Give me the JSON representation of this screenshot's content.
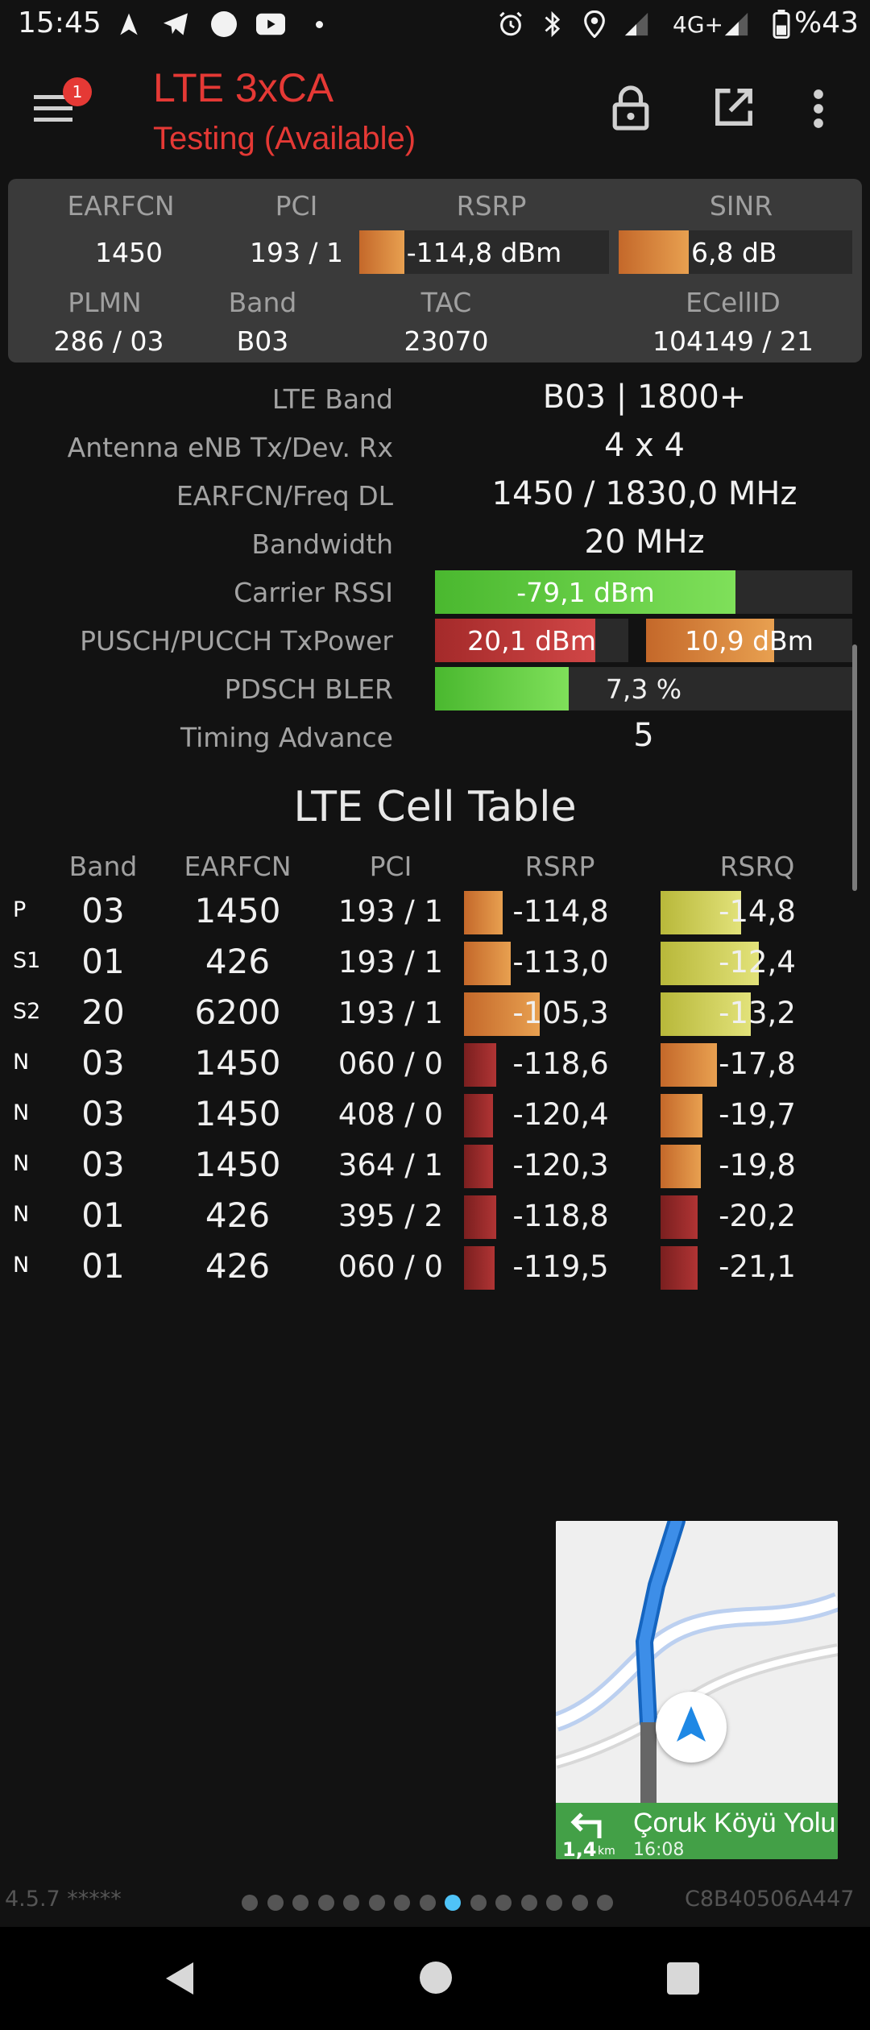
{
  "status_bar": {
    "time": "15:45",
    "battery": "%43",
    "network": "4G+",
    "icons": [
      "navigation-icon",
      "telegram-icon",
      "circle-icon",
      "youtube-icon",
      "dot-icon",
      "alarm-icon",
      "bluetooth-icon",
      "location-icon",
      "signal-icon",
      "battery-icon"
    ]
  },
  "app_bar": {
    "title": "LTE 3xCA",
    "subtitle": "Testing (Available)",
    "notification_count": "1",
    "icons": [
      "menu-icon",
      "lock-icon",
      "open-external-icon",
      "more-vert-icon"
    ]
  },
  "summary": {
    "headers1": [
      "EARFCN",
      "PCI",
      "RSRP",
      "SINR"
    ],
    "earfcn": "1450",
    "pci": "193 / 1",
    "rsrp": "-114,8 dBm",
    "rsrp_fill": 0.18,
    "sinr": "6,8 dB",
    "sinr_fill": 0.3,
    "headers2": [
      "PLMN",
      "Band",
      "TAC",
      "ECellID"
    ],
    "plmn": "286 / 03",
    "band": "B03",
    "tac": "23070",
    "ecellid": "104149 / 21"
  },
  "details": {
    "lte_band_label": "LTE Band",
    "lte_band": "B03 | 1800+",
    "antenna_label": "Antenna eNB Tx/Dev. Rx",
    "antenna": "4 x 4",
    "freq_label": "EARFCN/Freq DL",
    "freq": "1450 / 1830,0 MHz",
    "bw_label": "Bandwidth",
    "bw": "20 MHz",
    "rssi_label": "Carrier RSSI",
    "rssi": "-79,1 dBm",
    "rssi_fill": 0.72,
    "txpower_label": "PUSCH/PUCCH TxPower",
    "pusch": "20,1 dBm",
    "pusch_fill": 0.83,
    "pucch": "10,9 dBm",
    "pucch_fill": 0.62,
    "bler_label": "PDSCH BLER",
    "bler": "7,3 %",
    "bler_fill": 0.32,
    "ta_label": "Timing Advance",
    "ta": "5"
  },
  "cell_table": {
    "title": "LTE Cell Table",
    "headers": [
      "Band",
      "EARFCN",
      "PCI",
      "RSRP",
      "RSRQ"
    ],
    "rows": [
      {
        "tag": "P",
        "band": "03",
        "earfcn": "1450",
        "pci": "193 / 1",
        "rsrp": "-114,8",
        "rsrq": "-14,8"
      },
      {
        "tag": "S1",
        "band": "01",
        "earfcn": "426",
        "pci": "193 / 1",
        "rsrp": "-113,0",
        "rsrq": "-12,4"
      },
      {
        "tag": "S2",
        "band": "20",
        "earfcn": "6200",
        "pci": "193 / 1",
        "rsrp": "-105,3",
        "rsrq": "-13,2"
      },
      {
        "tag": "N",
        "band": "03",
        "earfcn": "1450",
        "pci": "060 / 0",
        "rsrp": "-118,6",
        "rsrq": "-17,8"
      },
      {
        "tag": "N",
        "band": "03",
        "earfcn": "1450",
        "pci": "408 / 0",
        "rsrp": "-120,4",
        "rsrq": "-19,7"
      },
      {
        "tag": "N",
        "band": "03",
        "earfcn": "1450",
        "pci": "364 / 1",
        "rsrp": "-120,3",
        "rsrq": "-19,8"
      },
      {
        "tag": "N",
        "band": "01",
        "earfcn": "426",
        "pci": "395 / 2",
        "rsrp": "-118,8",
        "rsrq": "-20,2"
      },
      {
        "tag": "N",
        "band": "01",
        "earfcn": "426",
        "pci": "060 / 0",
        "rsrp": "-119,5",
        "rsrq": "-21,1"
      }
    ]
  },
  "footer": {
    "version": "4.5.7 *****",
    "device_id": "C8B40506A447",
    "page_count": 15,
    "active_page": 8
  },
  "nav_popup": {
    "street": "Çoruk Köyü Yolu",
    "distance": "1,4",
    "distance_unit": "km",
    "eta": "16:08",
    "colors": {
      "panel": "#43a047",
      "route": "#1e88e5"
    }
  },
  "colors": {
    "title_red": "#e53935",
    "accent_blue": "#4fc3f7"
  }
}
